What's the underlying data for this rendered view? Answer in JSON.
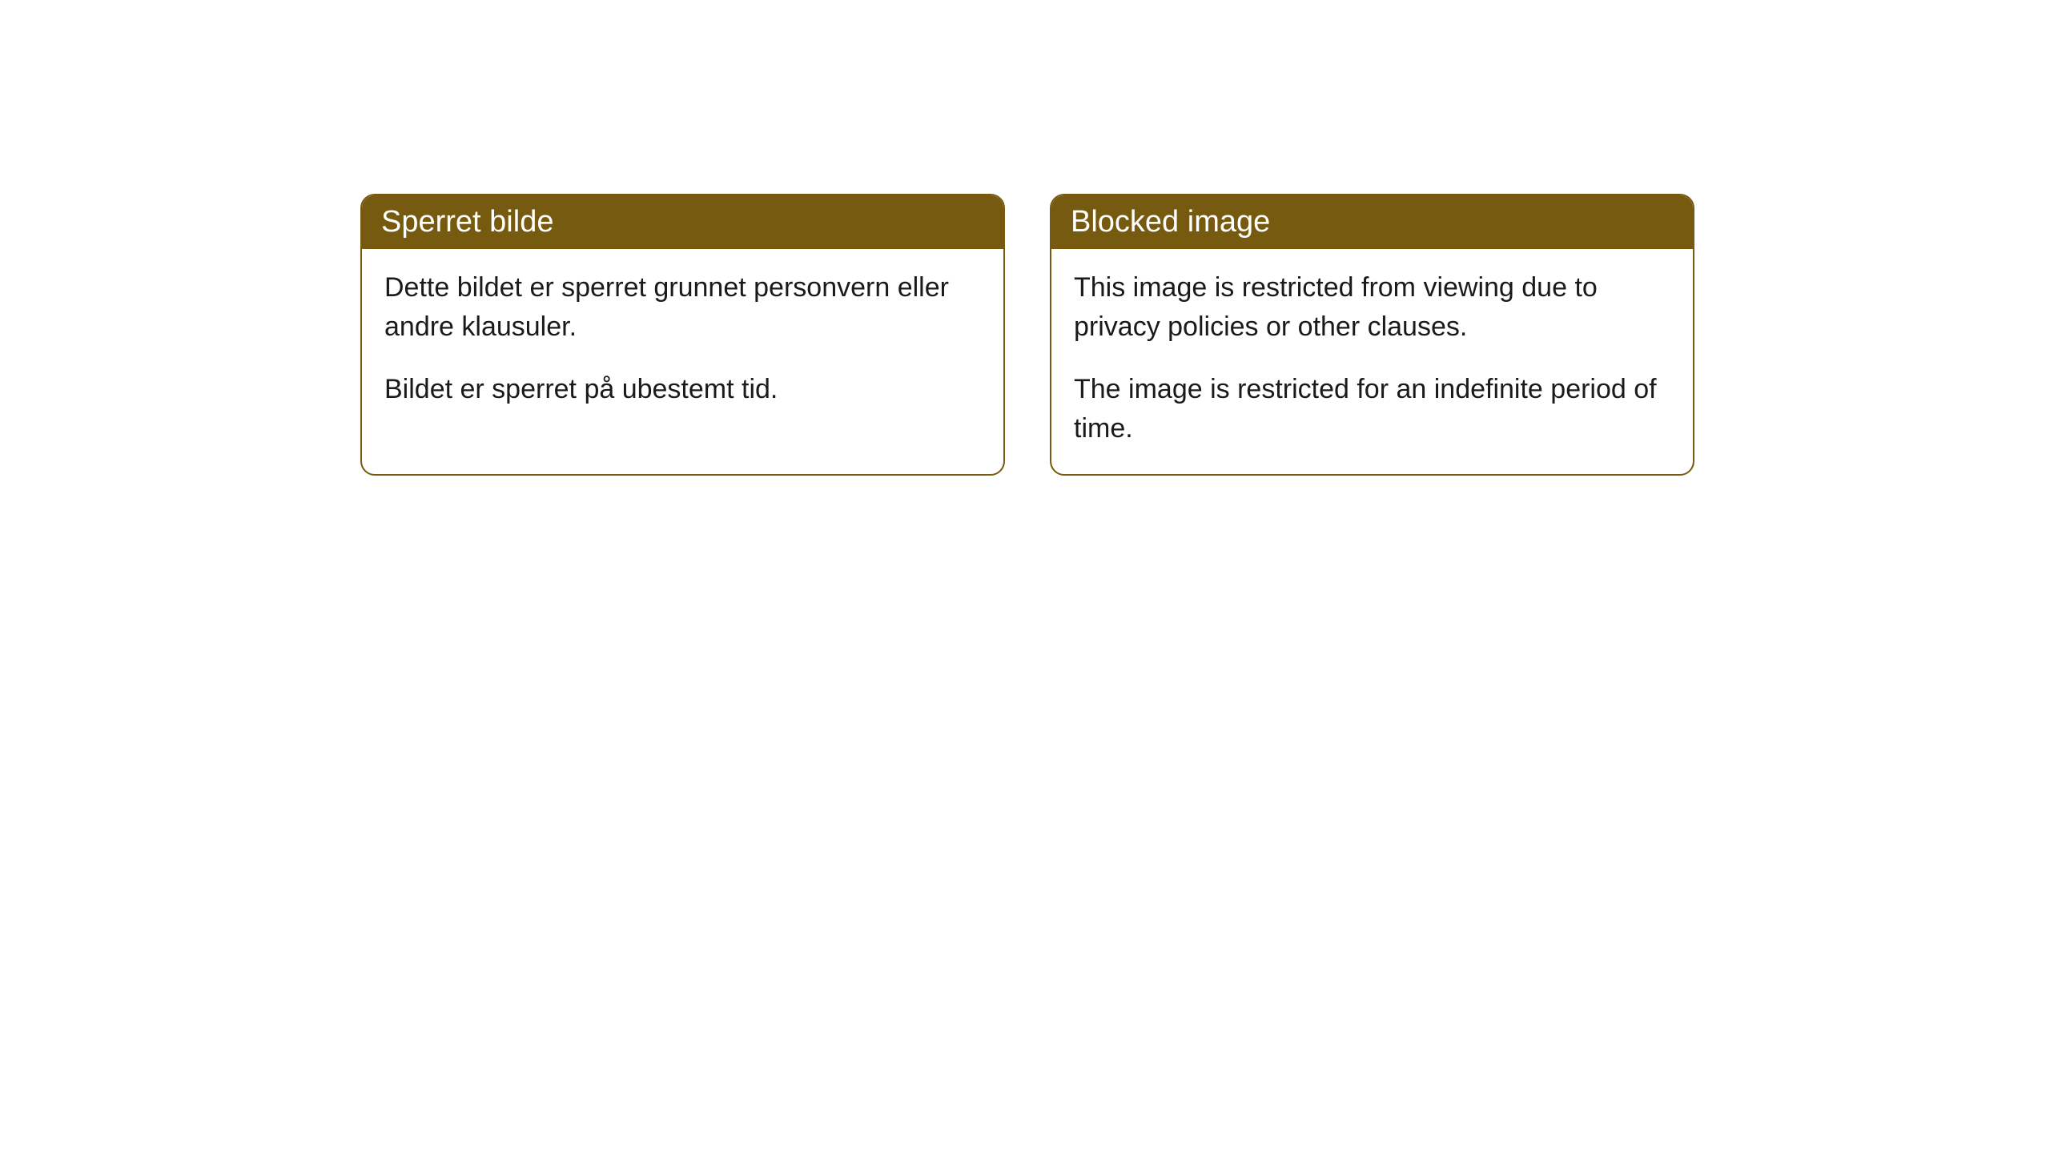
{
  "cards": [
    {
      "header": "Sperret bilde",
      "paragraph1": "Dette bildet er sperret grunnet personvern eller andre klausuler.",
      "paragraph2": "Bildet er sperret på ubestemt tid."
    },
    {
      "header": "Blocked image",
      "paragraph1": "This image is restricted from viewing due to privacy policies or other clauses.",
      "paragraph2": "The image is restricted for an indefinite period of time."
    }
  ],
  "styling": {
    "header_background_color": "#765a10",
    "header_text_color": "#ffffff",
    "border_color": "#765a10",
    "body_background_color": "#ffffff",
    "body_text_color": "#1a1a1a",
    "border_radius": 18,
    "header_fontsize": 38,
    "body_fontsize": 34
  }
}
